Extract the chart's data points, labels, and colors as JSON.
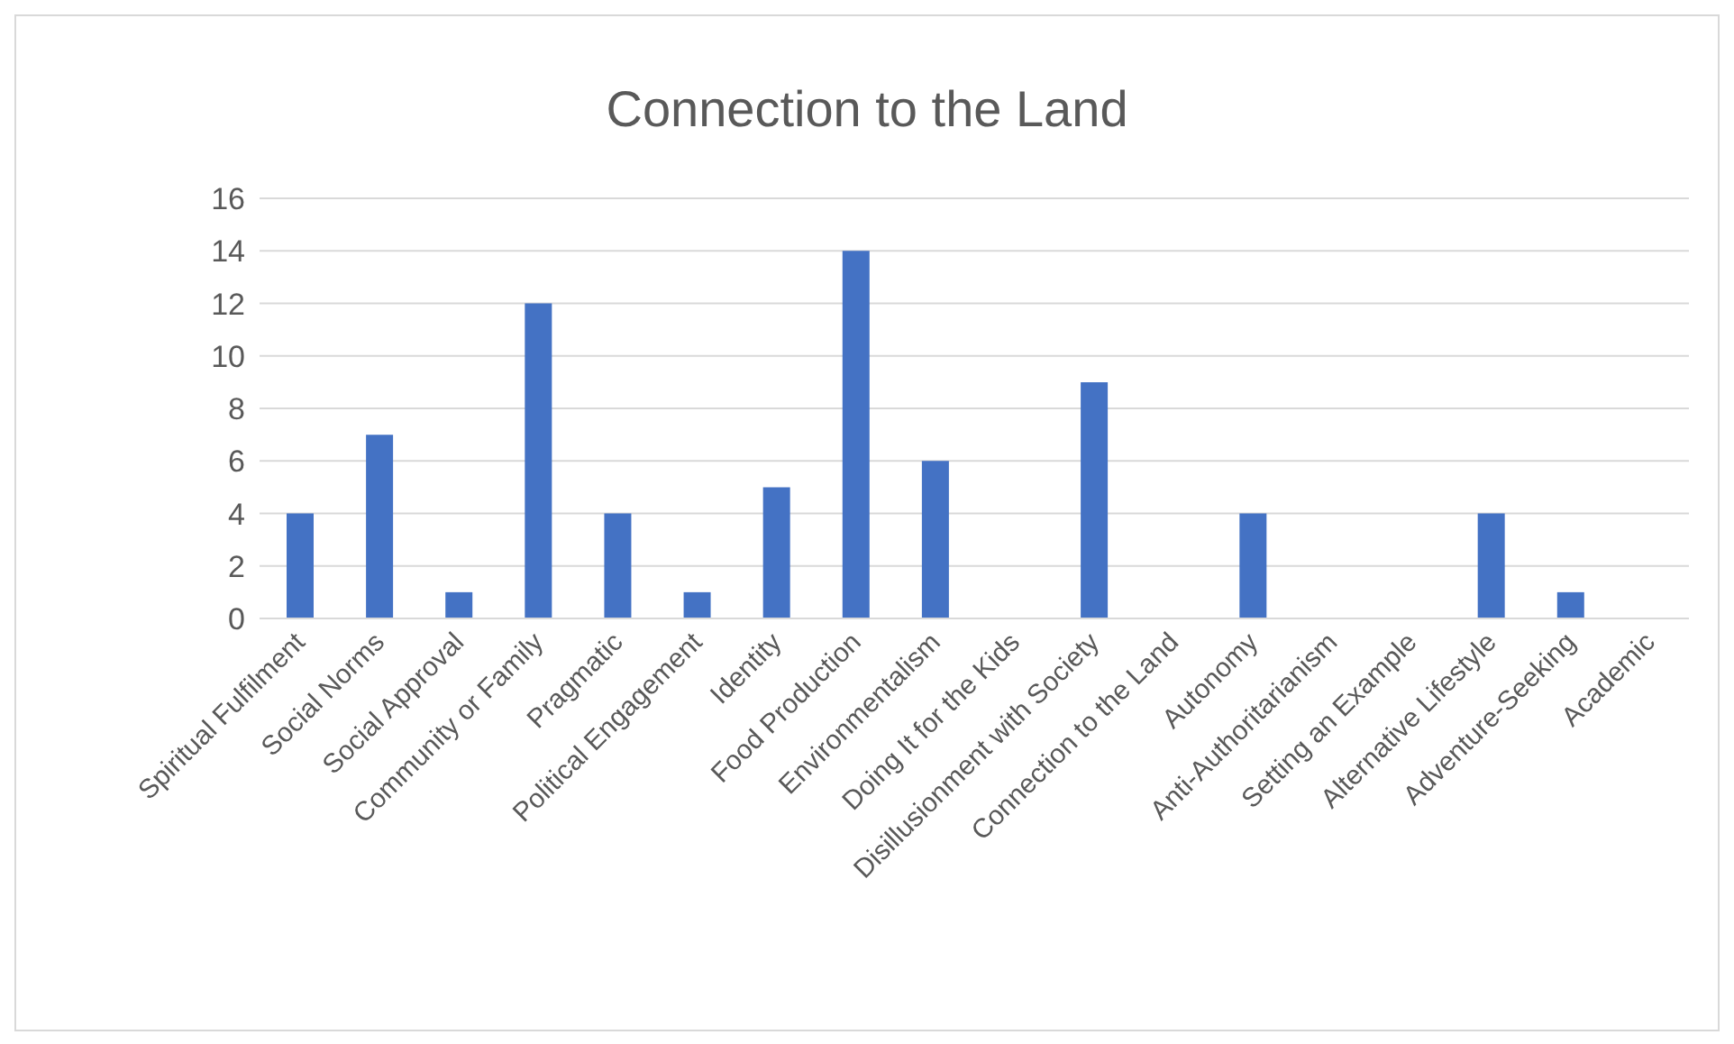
{
  "chart_data": {
    "type": "bar",
    "title": "Connection to the Land",
    "categories": [
      "Spiritual Fulfilment",
      "Social Norms",
      "Social Approval",
      "Community or Family",
      "Pragmatic",
      "Political Engagement",
      "Identity",
      "Food Production",
      "Environmentalism",
      "Doing It for the Kids",
      "Disillusionment with Society",
      "Connection to the Land",
      "Autonomy",
      "Anti-Authoritarianism",
      "Setting an Example",
      "Alternative Lifestyle",
      "Adventure-Seeking",
      "Academic"
    ],
    "values": [
      4,
      7,
      1,
      12,
      4,
      1,
      5,
      14,
      6,
      0,
      9,
      0,
      4,
      0,
      0,
      4,
      1,
      0
    ],
    "color": "#4472c4",
    "ylim": [
      0,
      16
    ],
    "yticks": [
      0,
      2,
      4,
      6,
      8,
      10,
      12,
      14,
      16
    ],
    "grid": "y",
    "legend": false
  }
}
